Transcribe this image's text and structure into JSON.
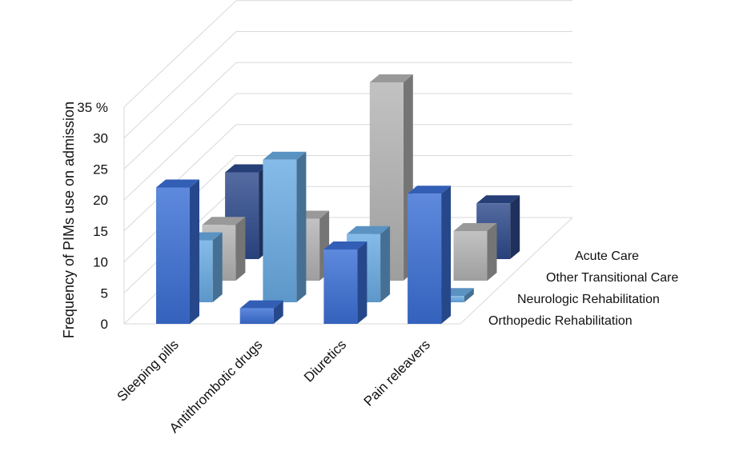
{
  "chart_data": {
    "type": "bar",
    "subtype": "3d-column",
    "title": "",
    "ylabel": "Frequency of PIMs use on admission",
    "ylim": [
      0,
      35
    ],
    "yticks": [
      {
        "v": 0,
        "label": "0"
      },
      {
        "v": 5,
        "label": "5"
      },
      {
        "v": 10,
        "label": "10"
      },
      {
        "v": 15,
        "label": "15"
      },
      {
        "v": 20,
        "label": "20"
      },
      {
        "v": 25,
        "label": "25"
      },
      {
        "v": 30,
        "label": "30"
      },
      {
        "v": 35,
        "label": "35 %"
      }
    ],
    "categories": [
      "Sleeping pills",
      "Antithrombotic drugs",
      "Diuretics",
      "Pain releavers"
    ],
    "series": [
      {
        "name": "Orthopedic Rehabilitation",
        "values": [
          22,
          2.5,
          12,
          21
        ]
      },
      {
        "name": "Neurologic Rehabilitation",
        "values": [
          10,
          23,
          11,
          1
        ]
      },
      {
        "name": "Other Transitional Care",
        "values": [
          9,
          10,
          32,
          8
        ]
      },
      {
        "name": "Acute Care",
        "values": [
          14,
          0,
          0,
          9
        ]
      }
    ],
    "colors": {
      "Orthopedic Rehabilitation": "#3B6FD6",
      "Neurologic Rehabilitation": "#6AACE4",
      "Other Transitional Care": "#B4B4B4",
      "Acute Care": "#2E4A8C"
    },
    "grid": true
  }
}
